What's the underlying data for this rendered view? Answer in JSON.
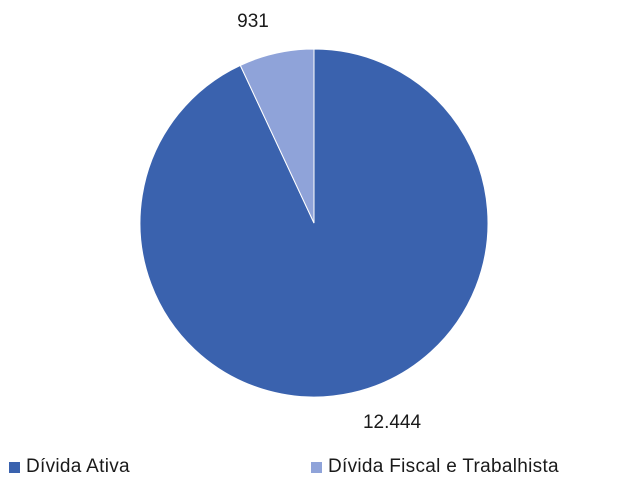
{
  "chart_data": {
    "type": "pie",
    "categories": [
      "Dívida Ativa",
      "Dívida Fiscal e Trabalhista"
    ],
    "values": [
      12444,
      931
    ],
    "value_labels": [
      "12.444",
      "931"
    ],
    "colors": [
      "#3A62AE",
      "#8FA3D9"
    ],
    "title": "",
    "legend_position": "bottom"
  }
}
